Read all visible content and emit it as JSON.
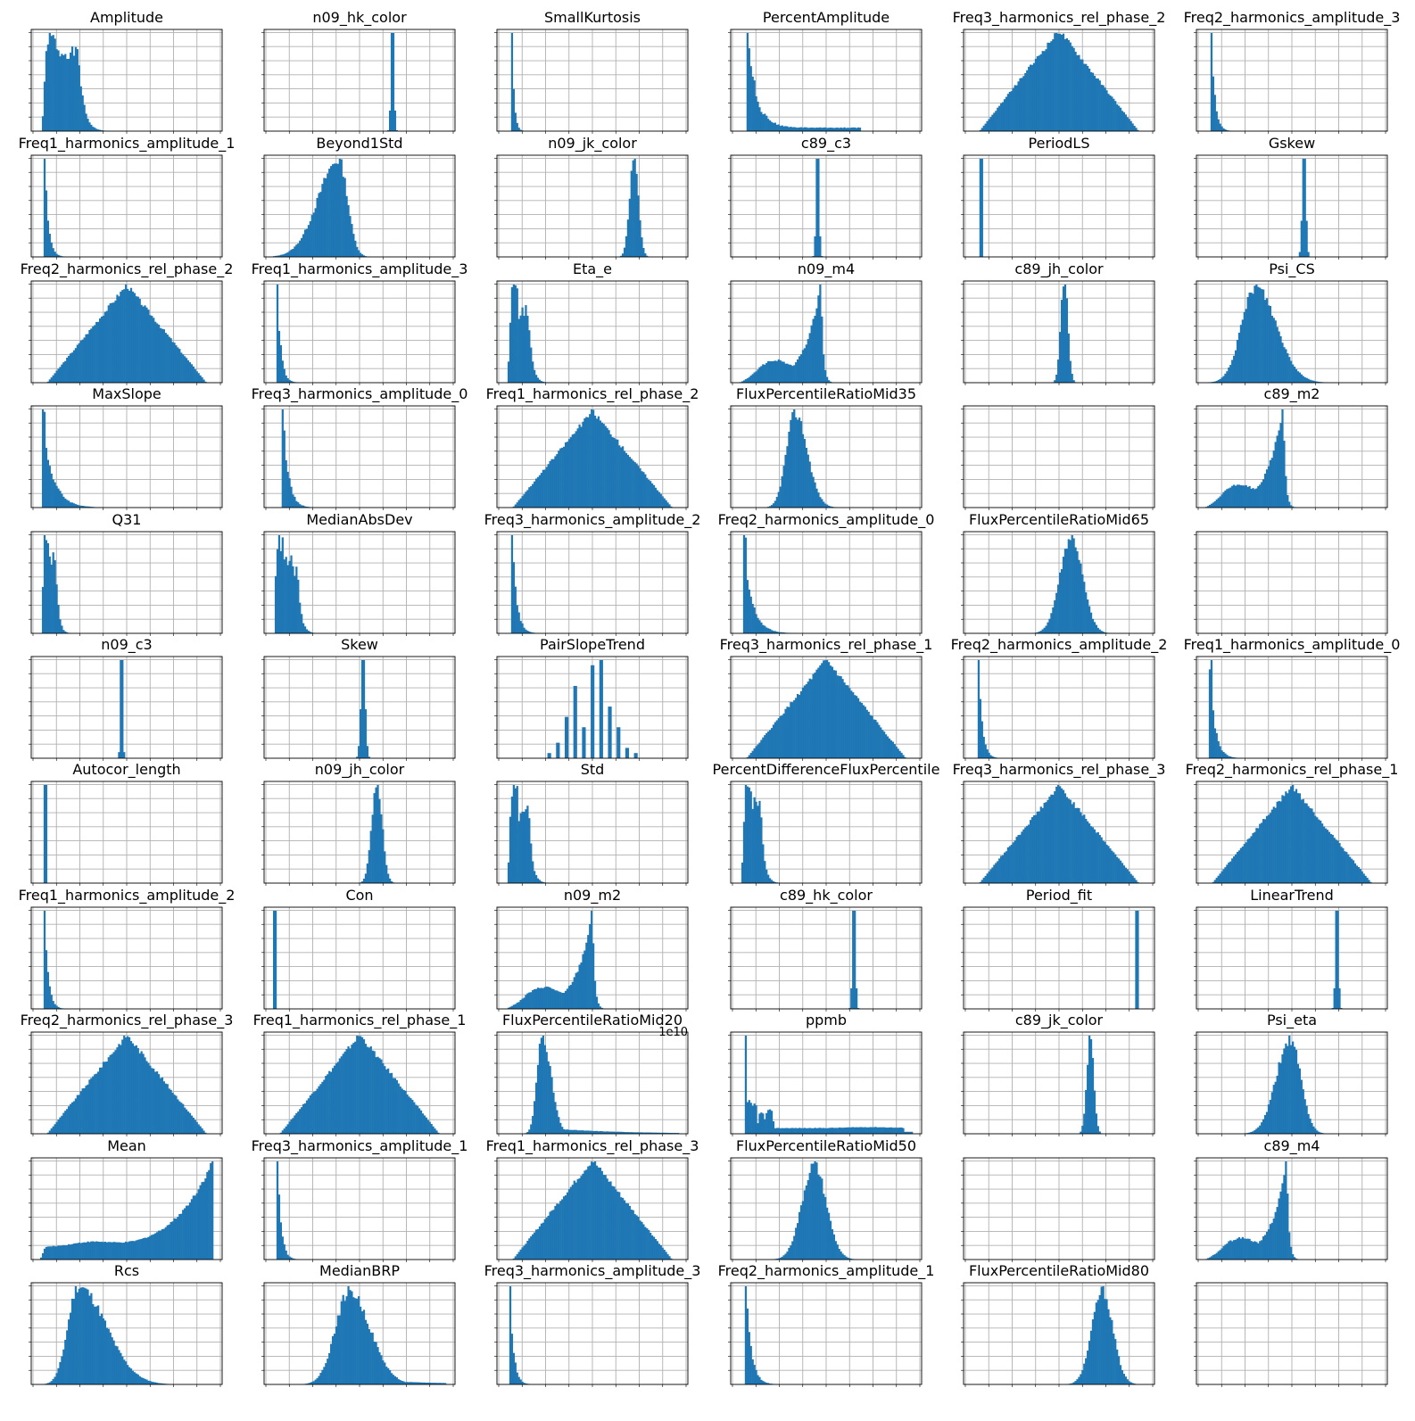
{
  "figure": {
    "bar_color": "#1f77b4",
    "grid_color": "#b0b0b0",
    "axes_color": "#000000"
  },
  "chart_data": [
    {
      "type": "bar",
      "title": "Amplitude",
      "shape": "spikes",
      "params": {
        "peaks": [
          [
            0.05,
            1.0,
            0.02
          ],
          [
            0.1,
            0.85,
            0.02
          ],
          [
            0.16,
            0.85,
            0.03
          ]
        ],
        "noise": 0.08,
        "seed": 1
      },
      "grid": true
    },
    {
      "type": "bar",
      "title": "Freq1_harmonics_amplitude_1",
      "shape": "decay",
      "params": {
        "start": 0.02,
        "width": 0.02,
        "seed": 2
      },
      "grid": true
    },
    {
      "type": "bar",
      "title": "Freq2_harmonics_rel_phase_2",
      "shape": "triangle",
      "params": {
        "seed": 3
      },
      "grid": true
    },
    {
      "type": "bar",
      "title": "MaxSlope",
      "shape": "decay",
      "params": {
        "start": 0.02,
        "width": 0.06,
        "seed": 4,
        "spike": true
      },
      "grid": true
    },
    {
      "type": "bar",
      "title": "Q31",
      "shape": "spikes",
      "params": {
        "peaks": [
          [
            0.03,
            1.0,
            0.012
          ],
          [
            0.06,
            0.8,
            0.015
          ]
        ],
        "noise": 0.1,
        "seed": 5
      },
      "grid": true
    },
    {
      "type": "bar",
      "title": "n09_c3",
      "shape": "spike",
      "params": {
        "pos": 0.47,
        "width": 0.006,
        "seed": 6
      },
      "grid": true
    },
    {
      "type": "bar",
      "title": "Autocor_length",
      "shape": "spike",
      "params": {
        "pos": 0.03,
        "width": 0.004,
        "seed": 7
      },
      "grid": true
    },
    {
      "type": "bar",
      "title": "Freq1_harmonics_amplitude_2",
      "shape": "decay",
      "params": {
        "start": 0.02,
        "width": 0.02,
        "seed": 8
      },
      "grid": true
    },
    {
      "type": "bar",
      "title": "Freq2_harmonics_rel_phase_3",
      "shape": "triangle",
      "params": {
        "seed": 9
      },
      "grid": true
    },
    {
      "type": "bar",
      "title": "Mean",
      "shape": "rising",
      "params": {
        "seed": 10
      },
      "grid": true
    },
    {
      "type": "bar",
      "title": "Rcs",
      "shape": "skewed",
      "params": {
        "pos": 0.22,
        "left": 0.06,
        "right": 0.16,
        "seed": 11
      },
      "grid": true
    },
    {
      "type": "bar",
      "title": "n09_hk_color",
      "shape": "spike",
      "params": {
        "pos": 0.69,
        "width": 0.008,
        "seed": 12
      },
      "grid": true
    },
    {
      "type": "bar",
      "title": "Beyond1Std",
      "shape": "skewed",
      "params": {
        "pos": 0.38,
        "left": 0.12,
        "right": 0.05,
        "seed": 13
      },
      "grid": true
    },
    {
      "type": "bar",
      "title": "Freq1_harmonics_amplitude_3",
      "shape": "decay",
      "params": {
        "start": 0.02,
        "width": 0.02,
        "seed": 14
      },
      "grid": true
    },
    {
      "type": "bar",
      "title": "Freq3_harmonics_amplitude_0",
      "shape": "decay",
      "params": {
        "start": 0.05,
        "width": 0.03,
        "seed": 15
      },
      "grid": true
    },
    {
      "type": "bar",
      "title": "MedianAbsDev",
      "shape": "spikes",
      "params": {
        "peaks": [
          [
            0.03,
            1.0,
            0.015
          ],
          [
            0.07,
            0.8,
            0.02
          ],
          [
            0.1,
            0.7,
            0.02
          ]
        ],
        "noise": 0.1,
        "seed": 16
      },
      "grid": true
    },
    {
      "type": "bar",
      "title": "Skew",
      "shape": "spike",
      "params": {
        "pos": 0.52,
        "width": 0.012,
        "seed": 17
      },
      "grid": true
    },
    {
      "type": "bar",
      "title": "n09_jh_color",
      "shape": "normal",
      "params": {
        "pos": 0.6,
        "width": 0.03,
        "seed": 18
      },
      "grid": true
    },
    {
      "type": "bar",
      "title": "Con",
      "shape": "spike",
      "params": {
        "pos": 0.01,
        "width": 0.003,
        "seed": 19
      },
      "grid": true
    },
    {
      "type": "bar",
      "title": "Freq1_harmonics_rel_phase_1",
      "shape": "triangle",
      "params": {
        "seed": 20
      },
      "grid": true
    },
    {
      "type": "bar",
      "title": "Freq3_harmonics_amplitude_1",
      "shape": "decay",
      "params": {
        "start": 0.02,
        "width": 0.02,
        "seed": 21
      },
      "grid": true
    },
    {
      "type": "bar",
      "title": "MedianBRP",
      "shape": "skewed",
      "params": {
        "pos": 0.44,
        "left": 0.08,
        "right": 0.12,
        "seed": 22,
        "tail": true
      },
      "grid": true
    },
    {
      "type": "bar",
      "title": "SmallKurtosis",
      "shape": "decay",
      "params": {
        "start": 0.03,
        "width": 0.012,
        "seed": 23
      },
      "grid": true
    },
    {
      "type": "bar",
      "title": "n09_jk_color",
      "shape": "normal",
      "params": {
        "pos": 0.74,
        "width": 0.025,
        "seed": 24
      },
      "grid": true
    },
    {
      "type": "bar",
      "title": "Eta_e",
      "shape": "spikes",
      "params": {
        "peaks": [
          [
            0.04,
            1.0,
            0.015
          ],
          [
            0.09,
            0.75,
            0.02
          ]
        ],
        "noise": 0.08,
        "seed": 25
      },
      "grid": true
    },
    {
      "type": "bar",
      "title": "Freq1_harmonics_rel_phase_2",
      "shape": "triangle",
      "params": {
        "seed": 26
      },
      "grid": true
    },
    {
      "type": "bar",
      "title": "Freq3_harmonics_amplitude_2",
      "shape": "decay",
      "params": {
        "start": 0.03,
        "width": 0.025,
        "seed": 27
      },
      "grid": true
    },
    {
      "type": "bar",
      "title": "PairSlopeTrend",
      "shape": "discrete",
      "params": {
        "positions": [
          0.25,
          0.3,
          0.35,
          0.4,
          0.45,
          0.5,
          0.55,
          0.6,
          0.65,
          0.7,
          0.75
        ],
        "heights": [
          0.05,
          0.15,
          0.4,
          0.7,
          0.3,
          0.9,
          0.95,
          0.5,
          0.3,
          0.1,
          0.05
        ],
        "seed": 28
      },
      "grid": true
    },
    {
      "type": "bar",
      "title": "Std",
      "shape": "spikes",
      "params": {
        "peaks": [
          [
            0.04,
            1.0,
            0.015
          ],
          [
            0.09,
            0.85,
            0.02
          ]
        ],
        "noise": 0.1,
        "seed": 29
      },
      "grid": true
    },
    {
      "type": "bar",
      "title": "n09_m2",
      "shape": "leftskew",
      "params": {
        "pos": 0.5,
        "seed": 30
      },
      "grid": true
    },
    {
      "type": "bar",
      "title": "FluxPercentileRatioMid20",
      "shape": "skewed",
      "params": {
        "pos": 0.21,
        "left": 0.03,
        "right": 0.05,
        "seed": 31,
        "tail": true
      },
      "grid": true,
      "offset": "1e10"
    },
    {
      "type": "bar",
      "title": "Freq1_harmonics_rel_phase_3",
      "shape": "triangle",
      "params": {
        "seed": 32
      },
      "grid": true
    },
    {
      "type": "bar",
      "title": "Freq3_harmonics_amplitude_3",
      "shape": "decay",
      "params": {
        "start": 0.02,
        "width": 0.02,
        "seed": 33
      },
      "grid": true
    },
    {
      "type": "bar",
      "title": "PercentAmplitude",
      "shape": "decay",
      "params": {
        "start": 0.04,
        "width": 0.05,
        "seed": 34,
        "tail": true
      },
      "grid": true
    },
    {
      "type": "bar",
      "title": "c89_c3",
      "shape": "spike",
      "params": {
        "pos": 0.45,
        "width": 0.008,
        "seed": 35
      },
      "grid": true
    },
    {
      "type": "bar",
      "title": "n09_m4",
      "shape": "leftskew",
      "params": {
        "pos": 0.47,
        "seed": 36
      },
      "grid": true
    },
    {
      "type": "bar",
      "title": "FluxPercentileRatioMid35",
      "shape": "skewed",
      "params": {
        "pos": 0.32,
        "left": 0.05,
        "right": 0.07,
        "seed": 37
      },
      "grid": true
    },
    {
      "type": "bar",
      "title": "Freq2_harmonics_amplitude_0",
      "shape": "decay",
      "params": {
        "start": 0.03,
        "width": 0.05,
        "seed": 38,
        "spike": true
      },
      "grid": true
    },
    {
      "type": "bar",
      "title": "Freq3_harmonics_rel_phase_1",
      "shape": "triangle",
      "params": {
        "seed": 39
      },
      "grid": true
    },
    {
      "type": "bar",
      "title": "PercentDifferenceFluxPercentile",
      "shape": "spikes",
      "params": {
        "peaks": [
          [
            0.04,
            1.0,
            0.015
          ],
          [
            0.08,
            0.85,
            0.02
          ]
        ],
        "noise": 0.1,
        "seed": 40
      },
      "grid": true
    },
    {
      "type": "bar",
      "title": "c89_hk_color",
      "shape": "spike",
      "params": {
        "pos": 0.66,
        "width": 0.008,
        "seed": 41
      },
      "grid": true
    },
    {
      "type": "bar",
      "title": "ppmb",
      "shape": "ppmb",
      "params": {
        "seed": 42
      },
      "grid": true
    },
    {
      "type": "bar",
      "title": "FluxPercentileRatioMid50",
      "shape": "normal",
      "params": {
        "pos": 0.43,
        "width": 0.07,
        "seed": 43
      },
      "grid": true
    },
    {
      "type": "bar",
      "title": "Freq2_harmonics_amplitude_1",
      "shape": "decay",
      "params": {
        "start": 0.03,
        "width": 0.03,
        "seed": 44
      },
      "grid": true
    },
    {
      "type": "bar",
      "title": "Freq3_harmonics_rel_phase_2",
      "shape": "triangle",
      "params": {
        "seed": 45
      },
      "grid": true
    },
    {
      "type": "bar",
      "title": "PeriodLS",
      "shape": "spike",
      "params": {
        "pos": 0.05,
        "width": 0.003,
        "seed": 46
      },
      "grid": true
    },
    {
      "type": "bar",
      "title": "c89_jh_color",
      "shape": "normal",
      "params": {
        "pos": 0.53,
        "width": 0.02,
        "seed": 47
      },
      "grid": true
    },
    {
      "type": "bar",
      "title": "",
      "shape": "empty",
      "params": {},
      "grid": true
    },
    {
      "type": "bar",
      "title": "FluxPercentileRatioMid65",
      "shape": "normal",
      "params": {
        "pos": 0.57,
        "width": 0.065,
        "seed": 48
      },
      "grid": true
    },
    {
      "type": "bar",
      "title": "Freq2_harmonics_amplitude_2",
      "shape": "decay",
      "params": {
        "start": 0.03,
        "width": 0.02,
        "seed": 49
      },
      "grid": true
    },
    {
      "type": "bar",
      "title": "Freq3_harmonics_rel_phase_3",
      "shape": "triangle",
      "params": {
        "seed": 50
      },
      "grid": true
    },
    {
      "type": "bar",
      "title": "Period_fit",
      "shape": "spike",
      "params": {
        "pos": 0.95,
        "width": 0.004,
        "seed": 51
      },
      "grid": true
    },
    {
      "type": "bar",
      "title": "c89_jk_color",
      "shape": "normal",
      "params": {
        "pos": 0.68,
        "width": 0.02,
        "seed": 52
      },
      "grid": true
    },
    {
      "type": "bar",
      "title": "",
      "shape": "empty",
      "params": {},
      "grid": true
    },
    {
      "type": "bar",
      "title": "FluxPercentileRatioMid80",
      "shape": "normal",
      "params": {
        "pos": 0.75,
        "width": 0.06,
        "seed": 53
      },
      "grid": true
    },
    {
      "type": "bar",
      "title": "Freq2_harmonics_amplitude_3",
      "shape": "decay",
      "params": {
        "start": 0.03,
        "width": 0.02,
        "seed": 54
      },
      "grid": true
    },
    {
      "type": "bar",
      "title": "Gskew",
      "shape": "spike",
      "params": {
        "pos": 0.57,
        "width": 0.01,
        "seed": 55
      },
      "grid": true
    },
    {
      "type": "bar",
      "title": "Psi_CS",
      "shape": "skewed",
      "params": {
        "pos": 0.29,
        "left": 0.08,
        "right": 0.12,
        "seed": 56
      },
      "grid": true
    },
    {
      "type": "bar",
      "title": "c89_m2",
      "shape": "leftskew",
      "params": {
        "pos": 0.45,
        "seed": 57
      },
      "grid": true
    },
    {
      "type": "bar",
      "title": "",
      "shape": "empty",
      "params": {},
      "grid": true
    },
    {
      "type": "bar",
      "title": "Freq1_harmonics_amplitude_0",
      "shape": "decay",
      "params": {
        "start": 0.03,
        "width": 0.03,
        "seed": 58,
        "spike": true
      },
      "grid": true
    },
    {
      "type": "bar",
      "title": "Freq2_harmonics_rel_phase_1",
      "shape": "triangle",
      "params": {
        "seed": 59
      },
      "grid": true
    },
    {
      "type": "bar",
      "title": "LinearTrend",
      "shape": "spike",
      "params": {
        "pos": 0.76,
        "width": 0.008,
        "seed": 60
      },
      "grid": true
    },
    {
      "type": "bar",
      "title": "Psi_eta",
      "shape": "skewed",
      "params": {
        "pos": 0.49,
        "left": 0.08,
        "right": 0.06,
        "seed": 61
      },
      "grid": true
    },
    {
      "type": "bar",
      "title": "c89_m4",
      "shape": "leftskew",
      "params": {
        "pos": 0.47,
        "seed": 62
      },
      "grid": true
    },
    {
      "type": "bar",
      "title": "",
      "shape": "empty",
      "params": {},
      "grid": true
    }
  ]
}
